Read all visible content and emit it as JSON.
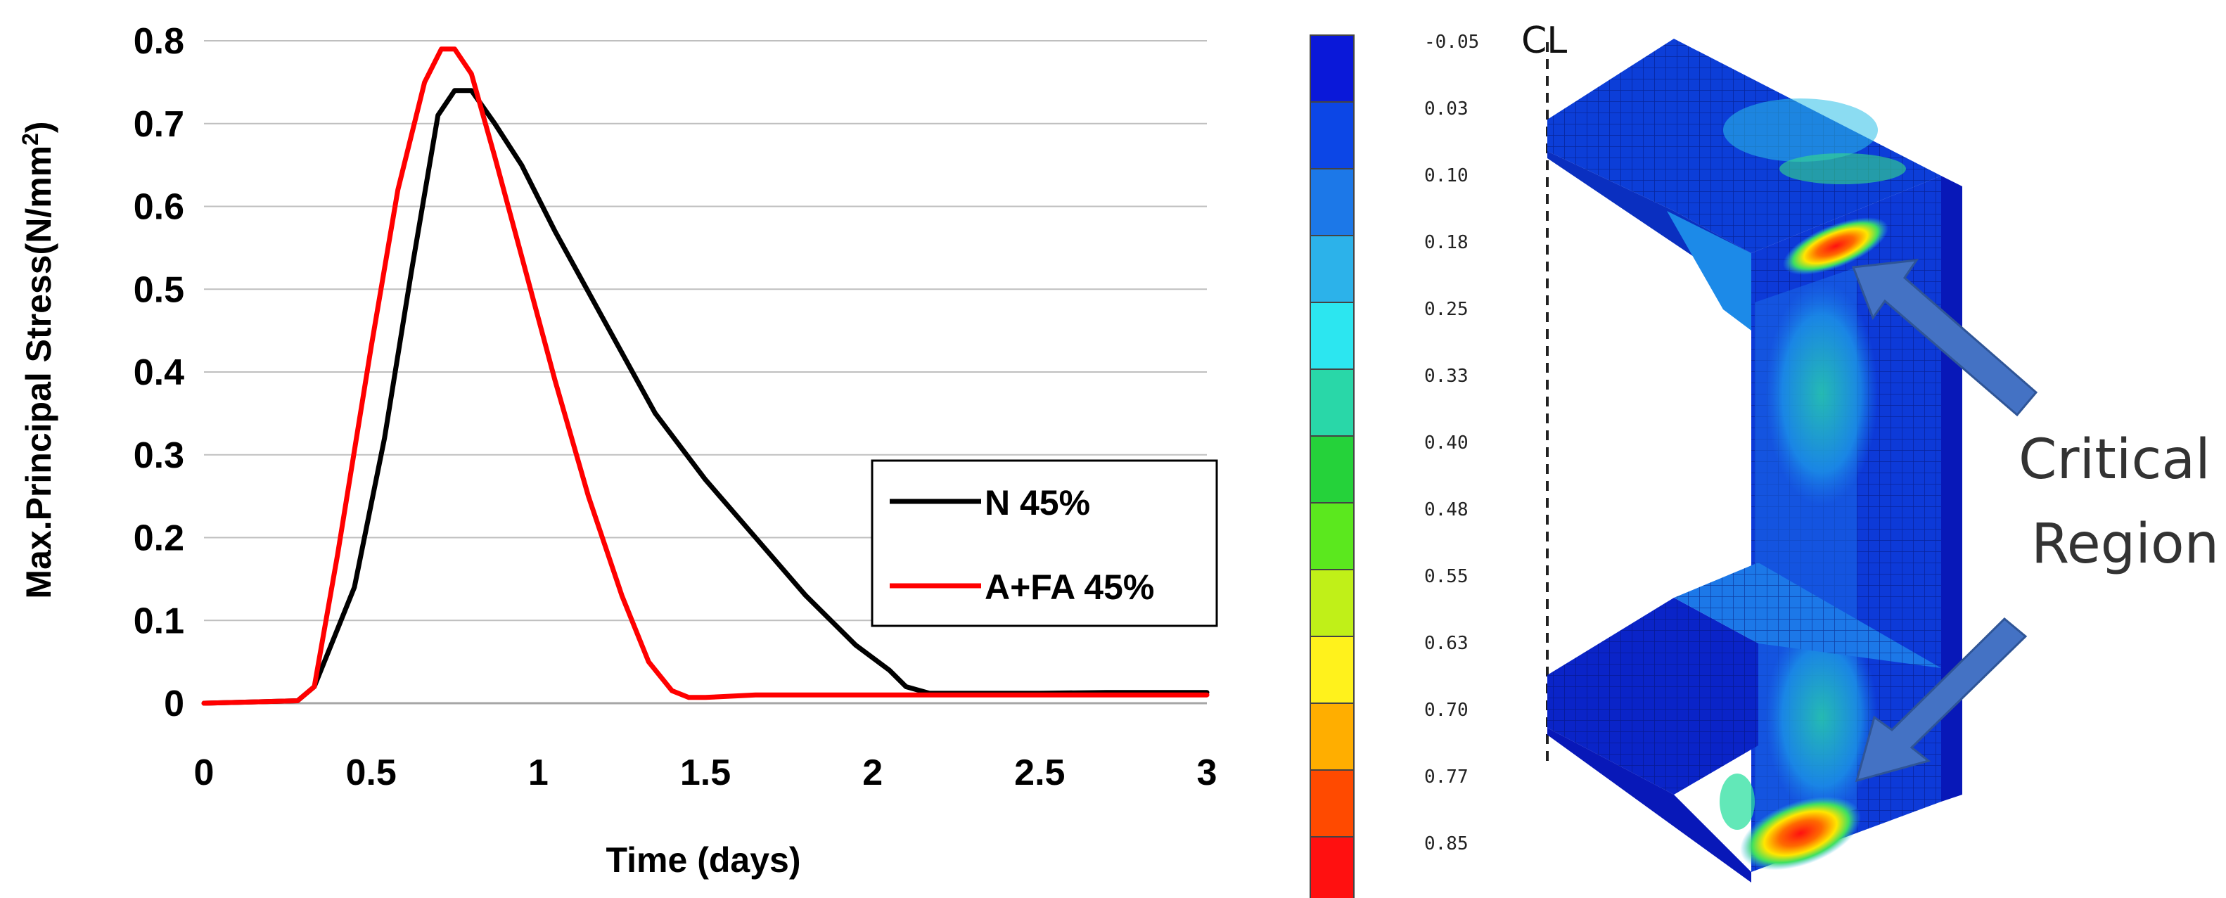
{
  "chart_data": {
    "type": "line",
    "title": "",
    "xlabel": "Time (days)",
    "ylabel": "Max.Principal Stress(N/mm²)",
    "ylabel_main": "Max.Principal Stress(N/mm",
    "ylabel_sup": "2",
    "ylabel_end": ")",
    "xlim": [
      0,
      3
    ],
    "ylim": [
      0,
      0.8
    ],
    "x_ticks": [
      0,
      0.5,
      1,
      1.5,
      2,
      2.5,
      3
    ],
    "x_tick_labels": [
      "0",
      "0.5",
      "1",
      "1.5",
      "2",
      "2.5",
      "3"
    ],
    "y_ticks": [
      0,
      0.1,
      0.2,
      0.3,
      0.4,
      0.5,
      0.6,
      0.7,
      0.8
    ],
    "y_tick_labels": [
      "0",
      "0.1",
      "0.2",
      "0.3",
      "0.4",
      "0.5",
      "0.6",
      "0.7",
      "0.8"
    ],
    "grid": "horizontal",
    "legend_position": "middle-right",
    "series": [
      {
        "name": "N 45%",
        "color": "#000000",
        "x": [
          0,
          0.28,
          0.33,
          0.45,
          0.54,
          0.62,
          0.7,
          0.75,
          0.8,
          0.87,
          0.95,
          1.05,
          1.2,
          1.35,
          1.5,
          1.65,
          1.8,
          1.95,
          2.05,
          2.1,
          2.17,
          2.5,
          2.7,
          3.0
        ],
        "y": [
          0,
          0.003,
          0.02,
          0.14,
          0.32,
          0.52,
          0.71,
          0.74,
          0.74,
          0.7,
          0.65,
          0.57,
          0.46,
          0.35,
          0.27,
          0.2,
          0.13,
          0.07,
          0.04,
          0.02,
          0.012,
          0.012,
          0.013,
          0.013
        ]
      },
      {
        "name": "A+FA 45%",
        "color": "#ff0000",
        "x": [
          0,
          0.28,
          0.33,
          0.4,
          0.5,
          0.58,
          0.66,
          0.71,
          0.75,
          0.8,
          0.87,
          0.95,
          1.05,
          1.15,
          1.25,
          1.33,
          1.4,
          1.45,
          1.5,
          1.65,
          2.0,
          2.5,
          3.0
        ],
        "y": [
          0,
          0.003,
          0.02,
          0.18,
          0.43,
          0.62,
          0.75,
          0.79,
          0.79,
          0.76,
          0.66,
          0.54,
          0.39,
          0.25,
          0.13,
          0.05,
          0.015,
          0.007,
          0.007,
          0.01,
          0.01,
          0.01,
          0.01
        ]
      }
    ]
  },
  "colorbar": {
    "labels": [
      "-0.05",
      "0.03",
      "0.10",
      "0.18",
      "0.25",
      "0.33",
      "0.40",
      "0.48",
      "0.55",
      "0.63",
      "0.70",
      "0.77",
      "0.85"
    ],
    "colors": [
      "#0a18d9",
      "#0c46e6",
      "#1c78e8",
      "#2cb2ea",
      "#2ce6f0",
      "#29d7a8",
      "#25d23a",
      "#5be81e",
      "#c0f018",
      "#fff21c",
      "#ffae00",
      "#ff4a00",
      "#ff1010"
    ]
  },
  "fem_view": {
    "centerline_label": "CL",
    "callout_line1": "Critical",
    "callout_line2": "Region"
  }
}
